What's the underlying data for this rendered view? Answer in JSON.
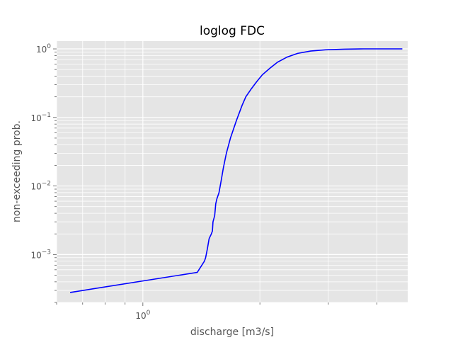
{
  "chart_data": {
    "type": "line",
    "title": "loglog FDC",
    "xlabel": "discharge [m3/s]",
    "ylabel": "non-exceeding prob.",
    "xscale": "log",
    "yscale": "log",
    "xlim": [
      0.6,
      4.8
    ],
    "ylim": [
      0.0002,
      1.3
    ],
    "grid": true,
    "colors": {
      "background": "#E5E5E5",
      "grid": "#FFFFFF",
      "line": "#0000FF"
    },
    "x_ticks": [
      {
        "value": 1,
        "base": "10",
        "exp": "0"
      }
    ],
    "y_ticks": [
      {
        "value": 0.001,
        "base": "10",
        "exp": "−3"
      },
      {
        "value": 0.01,
        "base": "10",
        "exp": "−2"
      },
      {
        "value": 0.1,
        "base": "10",
        "exp": "−1"
      },
      {
        "value": 1,
        "base": "10",
        "exp": "0"
      }
    ],
    "series": [
      {
        "x": [
          0.65,
          1.38,
          1.44,
          1.45,
          1.465,
          1.48,
          1.5,
          1.51,
          1.515,
          1.53,
          1.54,
          1.55,
          1.57,
          1.59,
          1.61,
          1.64,
          1.68,
          1.74,
          1.8,
          1.84,
          1.9,
          1.96,
          2.03,
          2.12,
          2.22,
          2.35,
          2.5,
          2.7,
          2.95,
          3.3,
          3.7,
          4.2,
          4.65
        ],
        "y": [
          0.00028,
          0.00055,
          0.0008,
          0.0009,
          0.0012,
          0.0017,
          0.002,
          0.0022,
          0.003,
          0.0037,
          0.0055,
          0.0065,
          0.008,
          0.012,
          0.018,
          0.03,
          0.05,
          0.09,
          0.15,
          0.2,
          0.26,
          0.33,
          0.42,
          0.52,
          0.64,
          0.76,
          0.86,
          0.93,
          0.97,
          0.99,
          1.0,
          1.0,
          1.0
        ]
      }
    ]
  }
}
